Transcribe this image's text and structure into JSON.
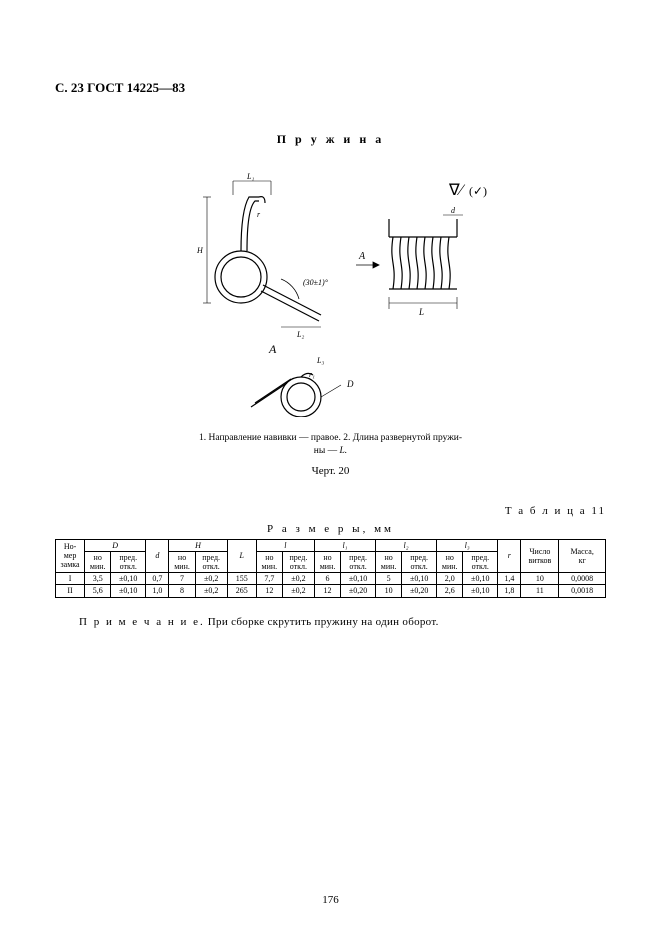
{
  "header": {
    "left": "С. 23 ГОСТ 14225—83"
  },
  "title_spring": "П р у ж и н а",
  "figure": {
    "labels": {
      "L1": "L₁",
      "L2": "L₂",
      "L3": "L₃",
      "L": "L",
      "H": "H",
      "d": "d",
      "r": "r",
      "r1": "r₁",
      "A_arrow": "A",
      "A_view": "A",
      "D": "D",
      "angle": "(30±1)°",
      "checkmark": "(✓)",
      "triangle": "∇⁄"
    },
    "caption_line1": "1. Направление навивки — правое. 2. Длина развернутой пружи-",
    "caption_line2": "ны — ",
    "caption_line2_ital": "L.",
    "fig_number": "Черт. 20"
  },
  "table_label": "Т а б л и ц а  11",
  "dims_title": "Р а з м е р ы,  мм",
  "table": {
    "group_headers": [
      "Но-\nмер\nзамка",
      "D",
      "d",
      "H",
      "L",
      "l",
      "l₁",
      "l₂",
      "l₃",
      "r",
      "Число\nвитков",
      "Масса,\nкг"
    ],
    "sub_pair": {
      "nom": "но\nмин.",
      "tol": "пред.\nоткл."
    },
    "rows": [
      {
        "lock": "I",
        "D_nom": "3,5",
        "D_tol": "±0,10",
        "d": "0,7",
        "H_nom": "7",
        "H_tol": "±0,2",
        "L": "155",
        "l_nom": "7,7",
        "l_tol": "±0,2",
        "l1_nom": "6",
        "l1_tol": "±0,10",
        "l2_nom": "5",
        "l2_tol": "±0,10",
        "l3_nom": "2,0",
        "l3_tol": "±0,10",
        "r": "1,4",
        "turns": "10",
        "mass": "0,0008"
      },
      {
        "lock": "II",
        "D_nom": "5,6",
        "D_tol": "±0,10",
        "d": "1,0",
        "H_nom": "8",
        "H_tol": "±0,2",
        "L": "265",
        "l_nom": "12",
        "l_tol": "±0,2",
        "l1_nom": "12",
        "l1_tol": "±0,20",
        "l2_nom": "10",
        "l2_tol": "±0,20",
        "l3_nom": "2,6",
        "l3_tol": "±0,10",
        "r": "1,8",
        "turns": "11",
        "mass": "0,0018"
      }
    ]
  },
  "note_prefix": "П р и м е ч а н и е.",
  "note_text": " При сборке скрутить пружину на один оборот.",
  "page_number": "176",
  "colors": {
    "stroke": "#000000",
    "fill_light": "#ffffff",
    "hatch": "#000000"
  }
}
